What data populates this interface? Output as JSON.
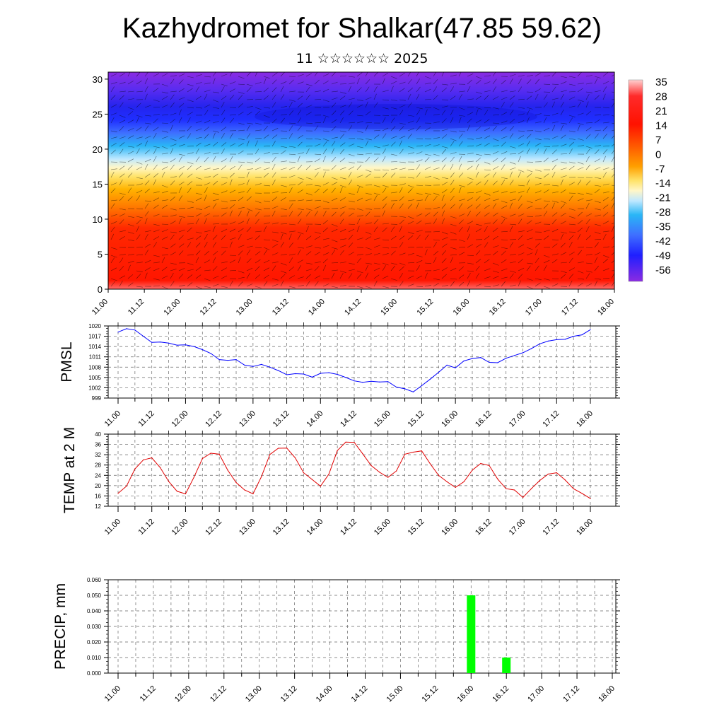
{
  "header": {
    "title": "Kazhydromet for Shalkar(47.85 59.62)",
    "subtitle": "11 ☆☆☆☆☆☆ 2025"
  },
  "chart_data": [
    {
      "type": "heatmap",
      "title": "",
      "xlabel": "",
      "ylabel": "",
      "x_tick_labels": [
        "11.00",
        "11.12",
        "12.00",
        "12.12",
        "13.00",
        "13.12",
        "14.00",
        "14.12",
        "15.00",
        "15.12",
        "16.00",
        "16.12",
        "17.00",
        "17.12",
        "18.00"
      ],
      "y_ticks": [
        0,
        5,
        10,
        15,
        20,
        25,
        30
      ],
      "ylim": [
        0,
        31
      ],
      "colorbar_labels": [
        "35",
        "28",
        "21",
        "14",
        "7",
        "0",
        "-7",
        "-14",
        "-21",
        "-28",
        "-35",
        "-42",
        "-49",
        "-56"
      ],
      "colorbar_position": "right",
      "overlay": "wind barbs",
      "colors": {
        "high": "#ffd8d8",
        "warm": "#ff1a00",
        "mid": "#ffe070",
        "cool": "#29b6f6",
        "low": "#2222ff",
        "lowest": "#8b2be2"
      }
    },
    {
      "type": "line",
      "ylabel": "PMSL",
      "ylim": [
        999,
        1020
      ],
      "y_tick_labels": [
        "1020",
        "1017",
        "1014",
        "1011",
        "1008",
        "1005",
        "1002",
        "999"
      ],
      "x_tick_labels": [
        "11.00",
        "11.12",
        "12.00",
        "12.12",
        "13.00",
        "13.12",
        "14.00",
        "14.12",
        "15.00",
        "15.12",
        "16.00",
        "16.12",
        "17.00",
        "17.12",
        "18.00"
      ],
      "grid": true,
      "color": "#0000ff",
      "x": [
        0,
        3,
        6,
        9,
        12,
        15,
        18,
        21,
        24,
        27,
        30,
        33,
        36,
        39,
        42,
        45,
        48,
        51,
        54,
        57,
        60,
        63,
        66,
        69,
        72,
        75,
        78,
        81,
        84,
        87,
        90,
        93,
        96,
        99,
        102,
        105,
        108,
        111,
        114,
        117,
        120,
        123,
        126,
        129,
        132,
        135,
        138,
        141,
        144,
        147,
        150,
        153,
        156,
        159,
        162,
        165,
        168
      ],
      "values": [
        1018.2,
        1019.2,
        1018.8,
        1017.0,
        1015.2,
        1015.3,
        1015.0,
        1014.4,
        1014.5,
        1014.0,
        1013.1,
        1012.0,
        1010.2,
        1010.0,
        1010.2,
        1008.6,
        1008.2,
        1008.8,
        1008.0,
        1007.0,
        1005.8,
        1006.1,
        1006.0,
        1005.1,
        1006.2,
        1006.4,
        1005.9,
        1005.0,
        1004.0,
        1003.6,
        1003.9,
        1003.7,
        1003.8,
        1002.2,
        1001.7,
        1000.8,
        1002.6,
        1004.5,
        1006.5,
        1008.6,
        1007.8,
        1009.8,
        1010.5,
        1010.8,
        1009.4,
        1009.3,
        1010.6,
        1011.4,
        1012.2,
        1013.4,
        1014.8,
        1015.6,
        1016.0,
        1016.1,
        1017.0,
        1017.4,
        1018.9
      ]
    },
    {
      "type": "line",
      "ylabel": "TEMP at 2 M",
      "ylim": [
        12,
        40
      ],
      "y_tick_labels": [
        "40",
        "36",
        "32",
        "28",
        "24",
        "20",
        "16",
        "12"
      ],
      "x_tick_labels": [
        "11.00",
        "11.12",
        "12.00",
        "12.12",
        "13.00",
        "13.12",
        "14.00",
        "14.12",
        "15.00",
        "15.12",
        "16.00",
        "16.12",
        "17.00",
        "17.12",
        "18.00"
      ],
      "grid": true,
      "color": "#e00000",
      "x": [
        0,
        3,
        6,
        9,
        12,
        15,
        18,
        21,
        24,
        27,
        30,
        33,
        36,
        39,
        42,
        45,
        48,
        51,
        54,
        57,
        60,
        63,
        66,
        69,
        72,
        75,
        78,
        81,
        84,
        87,
        90,
        93,
        96,
        99,
        102,
        105,
        108,
        111,
        114,
        117,
        120,
        123,
        126,
        129,
        132,
        135,
        138,
        141,
        144,
        147,
        150,
        153,
        156,
        159,
        162,
        165,
        168
      ],
      "values": [
        17.0,
        19.8,
        26.5,
        30.0,
        30.8,
        27.0,
        21.6,
        17.8,
        16.8,
        23.3,
        30.5,
        32.6,
        32.2,
        26.0,
        21.2,
        18.3,
        16.8,
        23.5,
        32.1,
        34.5,
        34.6,
        30.8,
        25.0,
        22.4,
        19.8,
        24.5,
        33.6,
        36.9,
        36.8,
        32.4,
        27.8,
        25.2,
        23.2,
        25.7,
        32.2,
        33.0,
        33.5,
        28.5,
        24.0,
        21.5,
        19.3,
        21.5,
        26.0,
        28.6,
        27.8,
        22.6,
        18.8,
        18.3,
        15.4,
        18.8,
        22.0,
        24.5,
        25.0,
        22.2,
        18.8,
        17.0,
        15.0
      ]
    },
    {
      "type": "bar",
      "ylabel": "PRECIP, mm",
      "ylim": [
        0,
        0.06
      ],
      "y_tick_labels": [
        "0.060",
        "0.050",
        "0.040",
        "0.030",
        "0.020",
        "0.010",
        "0.000"
      ],
      "x_tick_labels": [
        "11.00",
        "11.12",
        "12.00",
        "12.12",
        "13.00",
        "13.12",
        "14.00",
        "14.12",
        "15.00",
        "15.12",
        "16.00",
        "16.12",
        "17.00",
        "17.12",
        "18.00"
      ],
      "grid": true,
      "color": "#00ff00",
      "bars": [
        {
          "x": 120,
          "value": 0.05
        },
        {
          "x": 132,
          "value": 0.01
        }
      ]
    }
  ]
}
